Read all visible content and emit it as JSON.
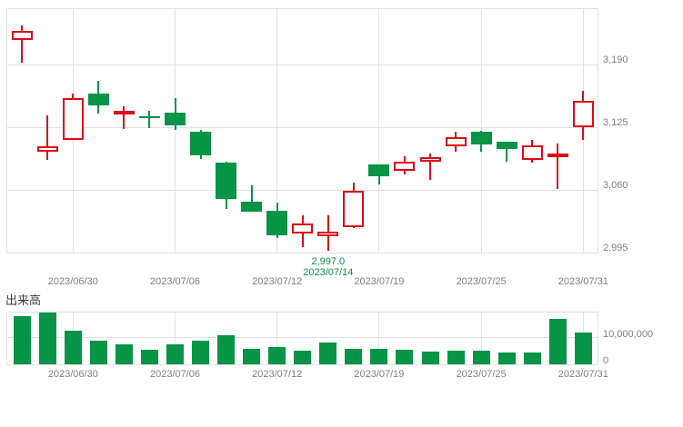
{
  "colors": {
    "up": "#df0915",
    "down": "#089446",
    "grid": "#e2e2e2",
    "axis_text": "#82807a",
    "annotation_text": "#089446",
    "title_text": "#3c3c3c"
  },
  "chart_data": [
    {
      "type": "candlestick",
      "name": "daily-price",
      "dates": [
        "2023/06/28",
        "2023/06/29",
        "2023/06/30",
        "2023/07/03",
        "2023/07/04",
        "2023/07/05",
        "2023/07/06",
        "2023/07/07",
        "2023/07/10",
        "2023/07/11",
        "2023/07/12",
        "2023/07/13",
        "2023/07/14",
        "2023/07/18",
        "2023/07/19",
        "2023/07/20",
        "2023/07/21",
        "2023/07/24",
        "2023/07/25",
        "2023/07/26",
        "2023/07/27",
        "2023/07/28",
        "2023/07/31"
      ],
      "open": [
        3215,
        3100,
        3112,
        3160,
        3138,
        3136,
        3140,
        3120,
        3088,
        3048,
        3038,
        3015,
        3012,
        3021,
        3086,
        3080,
        3089,
        3105,
        3120,
        3110,
        3091,
        3095,
        3125
      ],
      "high": [
        3231,
        3137,
        3160,
        3173,
        3147,
        3142,
        3155,
        3122,
        3089,
        3065,
        3047,
        3034,
        3034,
        3068,
        3086,
        3095,
        3098,
        3120,
        3121,
        3110,
        3112,
        3108,
        3163
      ],
      "low": [
        3192,
        3091,
        3112,
        3139,
        3123,
        3124,
        3122,
        3092,
        3040,
        3037,
        3010,
        3001,
        2997,
        3020,
        3066,
        3076,
        3070,
        3100,
        3100,
        3089,
        3088,
        3061,
        3112
      ],
      "close": [
        3225,
        3105,
        3155,
        3148,
        3142,
        3134,
        3127,
        3096,
        3051,
        3037,
        3013,
        3025,
        3017,
        3059,
        3074,
        3089,
        3094,
        3115,
        3107,
        3102,
        3106,
        3098,
        3152
      ],
      "up_style": "hollow-red",
      "down_style": "filled-green",
      "ylim": [
        2995,
        3247.5
      ],
      "grid": true,
      "y_ticks": [
        {
          "value": 3190,
          "label": "3,190"
        },
        {
          "value": 3125,
          "label": "3,125"
        },
        {
          "value": 3060,
          "label": "3,060"
        },
        {
          "value": 2995,
          "label": "2,995"
        }
      ],
      "x_ticks": [
        {
          "index": 2,
          "label": "2023/06/30"
        },
        {
          "index": 6,
          "label": "2023/07/06"
        },
        {
          "index": 10,
          "label": "2023/07/12"
        },
        {
          "index": 14,
          "label": "2023/07/19"
        },
        {
          "index": 18,
          "label": "2023/07/25"
        },
        {
          "index": 22,
          "label": "2023/07/31"
        }
      ],
      "annotation": {
        "price_label": "2,997.0",
        "date_label": "2023/07/14",
        "candle_index": 12
      }
    },
    {
      "type": "bar",
      "name": "volume",
      "title": "出来高",
      "dates": [
        "2023/06/28",
        "2023/06/29",
        "2023/06/30",
        "2023/07/03",
        "2023/07/04",
        "2023/07/05",
        "2023/07/06",
        "2023/07/07",
        "2023/07/10",
        "2023/07/11",
        "2023/07/12",
        "2023/07/13",
        "2023/07/14",
        "2023/07/18",
        "2023/07/19",
        "2023/07/20",
        "2023/07/21",
        "2023/07/24",
        "2023/07/25",
        "2023/07/26",
        "2023/07/27",
        "2023/07/28",
        "2023/07/31"
      ],
      "values": [
        17900000,
        19500000,
        12500000,
        8700000,
        7400000,
        5300000,
        7400000,
        8700000,
        10800000,
        5900000,
        6500000,
        5100000,
        8000000,
        5700000,
        5900000,
        5400000,
        4700000,
        5000000,
        5100000,
        4400000,
        4400000,
        17000000,
        11900000
      ],
      "ylim": [
        0,
        19400000
      ],
      "grid": true,
      "y_ticks": [
        {
          "value": 10000000,
          "label": "10,000,000"
        },
        {
          "value": 0,
          "label": "0"
        }
      ],
      "x_ticks": [
        {
          "index": 2,
          "label": "2023/06/30"
        },
        {
          "index": 6,
          "label": "2023/07/06"
        },
        {
          "index": 10,
          "label": "2023/07/12"
        },
        {
          "index": 14,
          "label": "2023/07/19"
        },
        {
          "index": 18,
          "label": "2023/07/25"
        },
        {
          "index": 22,
          "label": "2023/07/31"
        }
      ]
    }
  ]
}
